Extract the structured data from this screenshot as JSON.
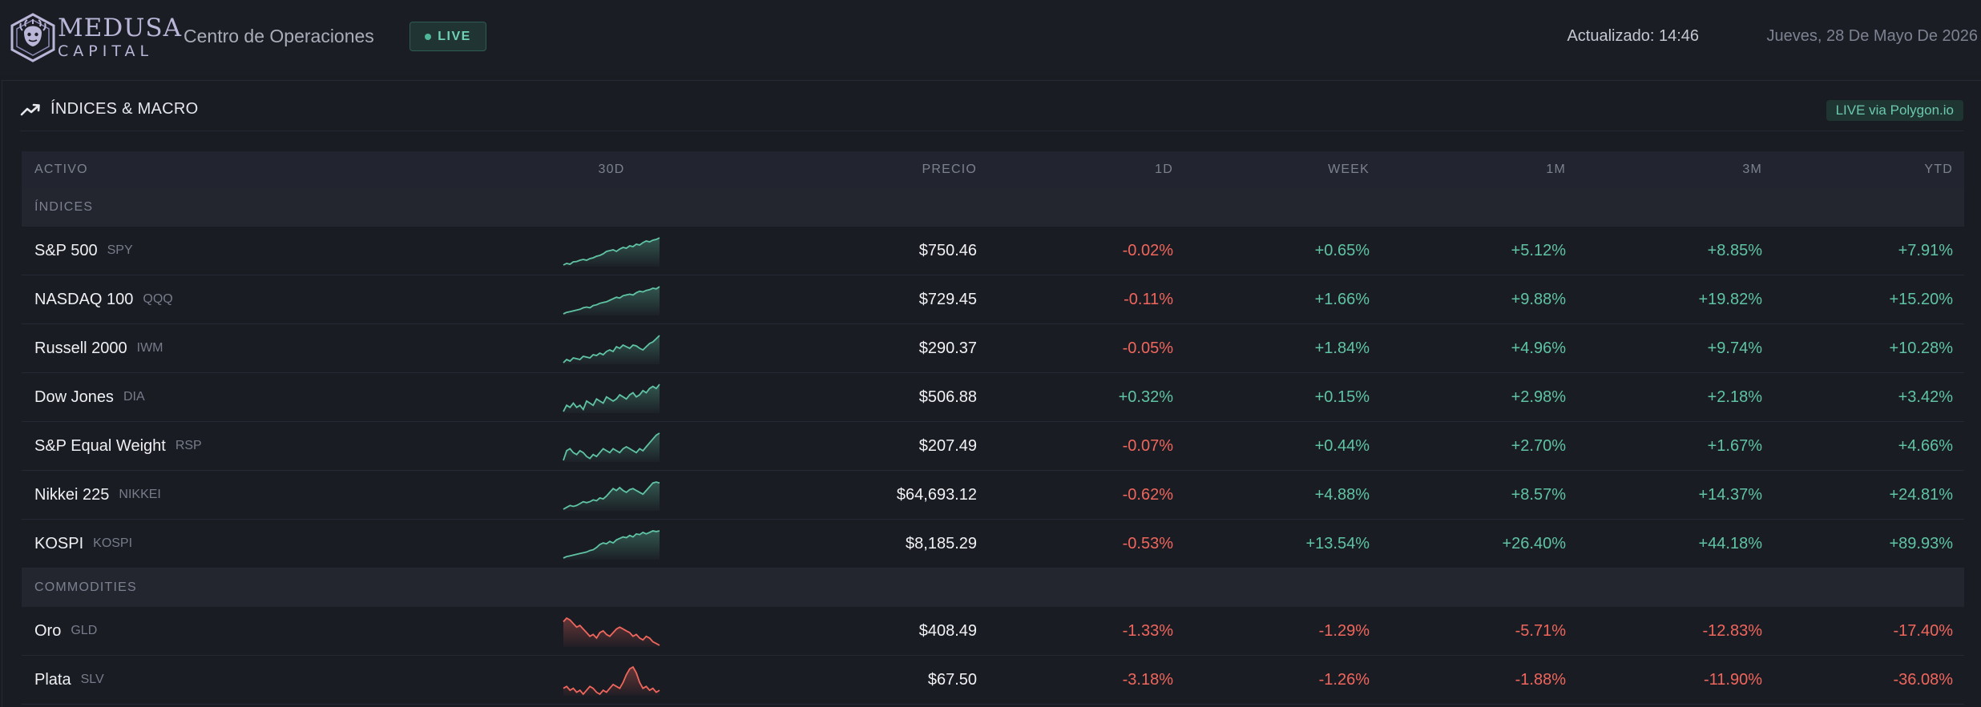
{
  "header": {
    "brand_line1": "MEDUSA",
    "brand_line2": "CAPITAL",
    "app_title": "Centro de Operaciones",
    "live_label": "LIVE",
    "updated": "Actualizado: 14:46",
    "date": "Jueves, 28 De Mayo De 2026"
  },
  "panel": {
    "title": "ÍNDICES & MACRO",
    "source_badge": "LIVE via Polygon.io"
  },
  "columns": {
    "activo": "ACTIVO",
    "spark": "30D",
    "precio": "PRECIO",
    "d1": "1D",
    "week": "WEEK",
    "m1": "1M",
    "m3": "3M",
    "ytd": "YTD"
  },
  "sections": [
    {
      "label": "ÍNDICES",
      "rows": [
        {
          "name": "S&P 500",
          "ticker": "SPY",
          "price": "$750.46",
          "d1": "-0.02%",
          "week": "+0.65%",
          "m1": "+5.12%",
          "m3": "+8.85%",
          "ytd": "+7.91%",
          "trend": "up",
          "spark": [
            3,
            4,
            3.5,
            5,
            5.2,
            6,
            6.5,
            6,
            7,
            7.5,
            8.5,
            9,
            10,
            11.5,
            12,
            12.5,
            11.5,
            13,
            14,
            13.5,
            15,
            14.5,
            16,
            15.5,
            17,
            18,
            17.5,
            18.5,
            19,
            20
          ]
        },
        {
          "name": "NASDAQ 100",
          "ticker": "QQQ",
          "price": "$729.45",
          "d1": "-0.11%",
          "week": "+1.66%",
          "m1": "+9.88%",
          "m3": "+19.82%",
          "ytd": "+15.20%",
          "trend": "up",
          "spark": [
            2,
            3,
            3.5,
            4,
            4.5,
            5,
            6,
            6.5,
            6,
            7.5,
            8,
            9,
            9.5,
            10,
            11,
            12,
            13,
            12.5,
            14,
            14.5,
            15,
            14.5,
            16,
            17,
            16.5,
            17.5,
            18,
            19,
            18.5,
            20
          ]
        },
        {
          "name": "Russell 2000",
          "ticker": "IWM",
          "price": "$290.37",
          "d1": "-0.05%",
          "week": "+1.84%",
          "m1": "+4.96%",
          "m3": "+9.74%",
          "ytd": "+10.28%",
          "trend": "up",
          "spark": [
            3,
            5,
            4,
            6,
            5.5,
            5,
            7,
            6.5,
            6,
            8,
            7.5,
            9,
            8,
            10,
            11,
            10,
            13,
            12,
            14,
            13,
            12,
            14,
            13.5,
            12,
            11,
            13,
            15,
            16,
            18,
            20
          ]
        },
        {
          "name": "Dow Jones",
          "ticker": "DIA",
          "price": "$506.88",
          "d1": "+0.32%",
          "week": "+0.15%",
          "m1": "+2.98%",
          "m3": "+2.18%",
          "ytd": "+3.42%",
          "trend": "up",
          "spark": [
            6,
            9,
            8,
            10,
            8,
            9,
            7,
            11,
            10,
            9,
            12,
            11,
            10,
            13,
            12,
            11,
            12,
            14,
            13,
            12,
            14,
            15,
            13,
            14,
            16,
            15,
            17,
            18,
            17,
            19
          ]
        },
        {
          "name": "S&P Equal Weight",
          "ticker": "RSP",
          "price": "$207.49",
          "d1": "-0.07%",
          "week": "+0.44%",
          "m1": "+2.70%",
          "m3": "+1.67%",
          "ytd": "+4.66%",
          "trend": "up",
          "spark": [
            6,
            11,
            12,
            10,
            9,
            11,
            10,
            8,
            7,
            9,
            8,
            10,
            12,
            11,
            10,
            12,
            11,
            10,
            12,
            13,
            12,
            11,
            10,
            12,
            11,
            13,
            15,
            17,
            19,
            20
          ]
        },
        {
          "name": "Nikkei 225",
          "ticker": "NIKKEI",
          "price": "$64,693.12",
          "d1": "-0.62%",
          "week": "+4.88%",
          "m1": "+8.57%",
          "m3": "+14.37%",
          "ytd": "+24.81%",
          "trend": "up",
          "spark": [
            5,
            6,
            7,
            6.5,
            7,
            8,
            9,
            8.5,
            9,
            10,
            9.5,
            11,
            10.5,
            12,
            14,
            16,
            15,
            16.5,
            15,
            14,
            15.5,
            16,
            15,
            14,
            13,
            15,
            17,
            19,
            19.5,
            19
          ]
        },
        {
          "name": "KOSPI",
          "ticker": "KOSPI",
          "price": "$8,185.29",
          "d1": "-0.53%",
          "week": "+13.54%",
          "m1": "+26.40%",
          "m3": "+44.18%",
          "ytd": "+89.93%",
          "trend": "up",
          "spark": [
            2,
            3,
            3.5,
            4,
            4.5,
            5,
            5.5,
            6,
            7,
            7.5,
            9,
            11,
            12,
            11.5,
            13,
            12,
            14,
            15,
            16,
            15.5,
            17,
            16,
            18,
            17.5,
            19,
            18,
            19,
            20,
            19.5,
            20
          ]
        }
      ]
    },
    {
      "label": "COMMODITIES",
      "rows": [
        {
          "name": "Oro",
          "ticker": "GLD",
          "price": "$408.49",
          "d1": "-1.33%",
          "week": "-1.29%",
          "m1": "-5.71%",
          "m3": "-12.83%",
          "ytd": "-17.40%",
          "trend": "down",
          "spark": [
            18,
            20,
            19,
            17,
            15,
            16,
            14,
            12,
            10,
            11,
            9,
            12,
            13,
            11,
            10,
            12,
            14,
            15,
            14,
            13,
            12,
            10,
            11,
            9,
            8,
            10,
            9,
            7,
            6,
            5
          ]
        },
        {
          "name": "Plata",
          "ticker": "SLV",
          "price": "$67.50",
          "d1": "-3.18%",
          "week": "-1.26%",
          "m1": "-1.88%",
          "m3": "-11.90%",
          "ytd": "-36.08%",
          "trend": "down",
          "spark": [
            9,
            10,
            8,
            9,
            7,
            8,
            6,
            8,
            10,
            9,
            7,
            6,
            8,
            7,
            9,
            11,
            10,
            9,
            12,
            16,
            19,
            20,
            17,
            12,
            9,
            10,
            8,
            9,
            7,
            8
          ]
        }
      ]
    }
  ],
  "colors": {
    "positive": "#5fc4a4",
    "negative": "#f0665c",
    "accent_brand": "#b9b6d8"
  }
}
